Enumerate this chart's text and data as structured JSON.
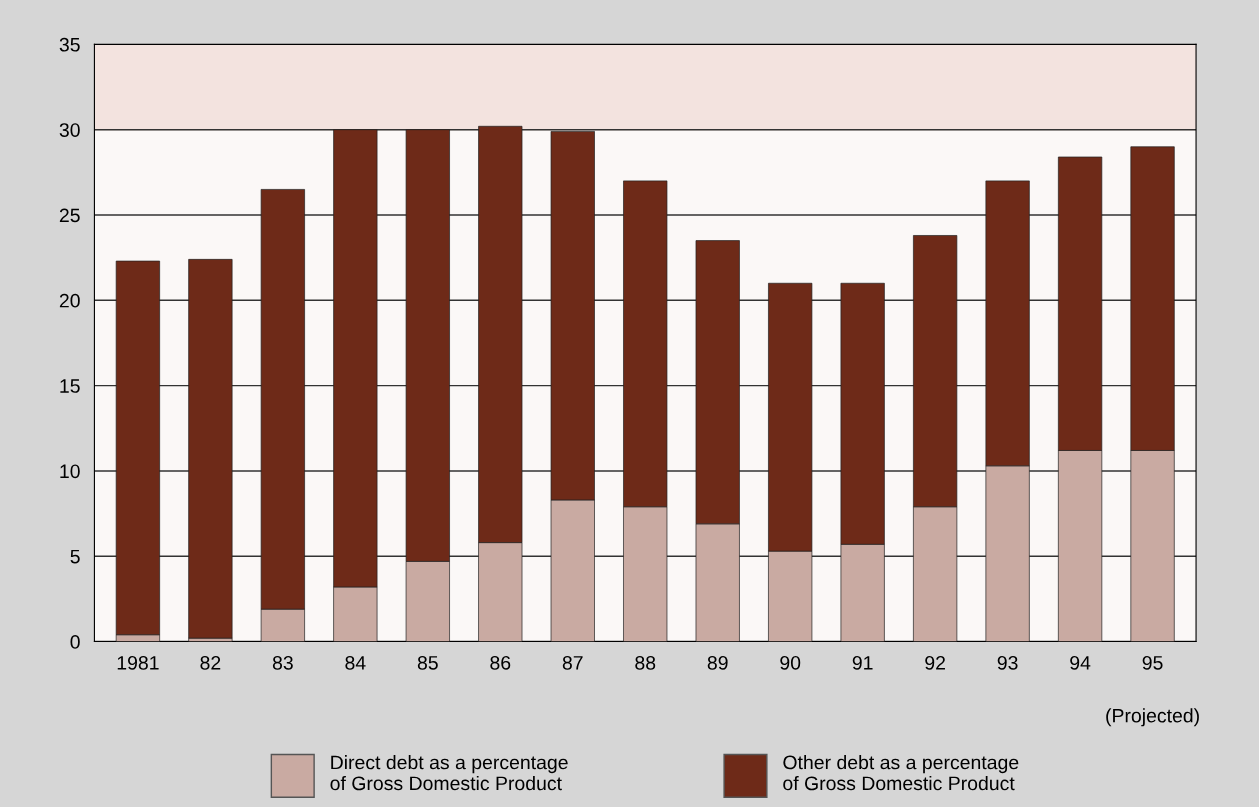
{
  "chart_data": {
    "type": "bar",
    "stacked": true,
    "categories": [
      "1981",
      "82",
      "83",
      "84",
      "85",
      "86",
      "87",
      "88",
      "89",
      "90",
      "91",
      "92",
      "93",
      "94",
      "95"
    ],
    "series": [
      {
        "name": "Direct debt as a percentage\nof Gross Domestic Product",
        "color": "#c9aaa2",
        "values": [
          0.4,
          0.2,
          1.9,
          3.2,
          4.7,
          5.8,
          8.3,
          7.9,
          6.9,
          5.3,
          5.7,
          7.9,
          10.3,
          11.2,
          11.2
        ]
      },
      {
        "name": "Other debt as a percentage\nof Gross Domestic Product",
        "color": "#6e2a18",
        "values": [
          21.9,
          22.2,
          24.6,
          26.8,
          25.3,
          24.4,
          21.6,
          19.1,
          16.6,
          15.7,
          15.3,
          15.9,
          16.7,
          17.2,
          17.8
        ]
      }
    ],
    "ylim": [
      0,
      35
    ],
    "yticks": [
      0,
      5,
      10,
      15,
      20,
      25,
      30,
      35
    ],
    "bands": [
      {
        "axis": "y",
        "from": 30,
        "to": 35,
        "color": "#f3e3df"
      }
    ],
    "annotations": [
      "(Projected)"
    ],
    "grid": "y",
    "legend": "bottom"
  }
}
